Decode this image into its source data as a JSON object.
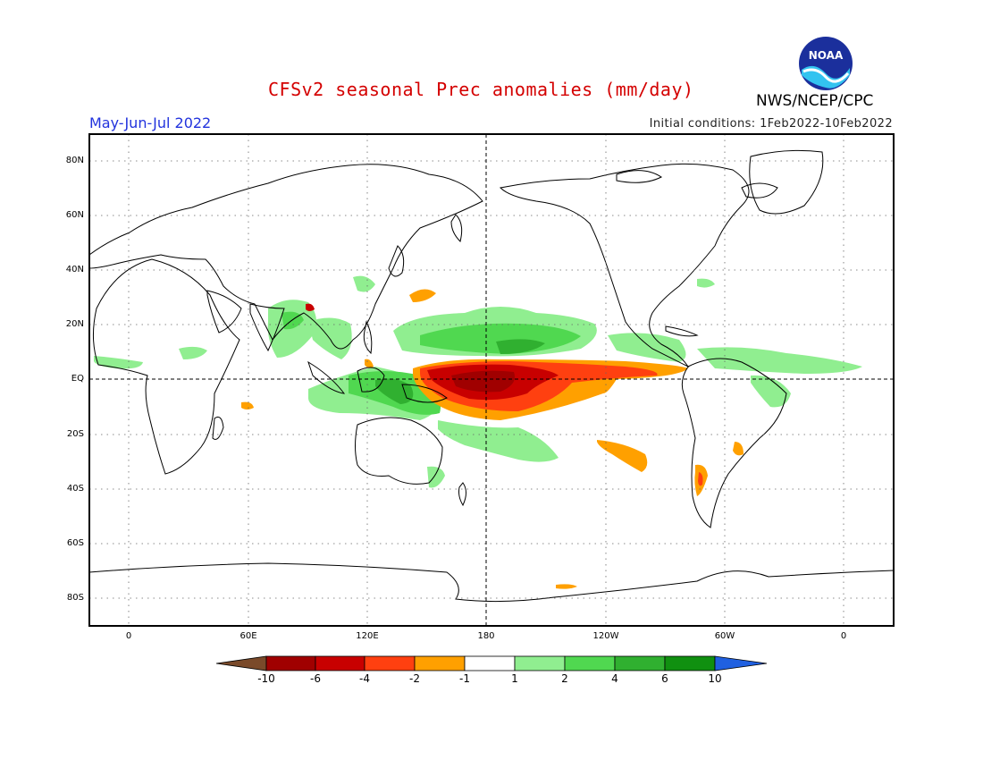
{
  "header": {
    "title": "CFSv2 seasonal Prec anomalies (mm/day)",
    "agency": "NWS/NCEP/CPC",
    "season": "May-Jun-Jul 2022",
    "initial_conditions": "Initial conditions: 1Feb2022-10Feb2022",
    "logo_text": "NOAA"
  },
  "map": {
    "projection": "equirectangular, centered 180",
    "lat_ticks": [
      "80N",
      "60N",
      "40N",
      "20N",
      "EQ",
      "20S",
      "40S",
      "60S",
      "80S"
    ],
    "lon_ticks": [
      "0",
      "60E",
      "120E",
      "180",
      "120W",
      "60W",
      "0"
    ],
    "grid": "dotted",
    "reference_lines": [
      "equator",
      "180 meridian"
    ]
  },
  "colorbar": {
    "labels": [
      "-10",
      "-6",
      "-4",
      "-2",
      "-1",
      "1",
      "2",
      "4",
      "6",
      "10"
    ],
    "colors": [
      "#7a4a2a",
      "#a00000",
      "#c80000",
      "#ff4010",
      "#ffa000",
      "#ffffff",
      "#90ee90",
      "#50d850",
      "#30b030",
      "#109010",
      "#2060e0"
    ]
  },
  "colors": {
    "strong_dry": "#c80000",
    "dry": "#ff4010",
    "mild_dry": "#ffa000",
    "mild_wet": "#90ee90",
    "wet": "#50d850",
    "strong_wet": "#30b030",
    "title": "#d40000",
    "season": "#2233dd"
  }
}
